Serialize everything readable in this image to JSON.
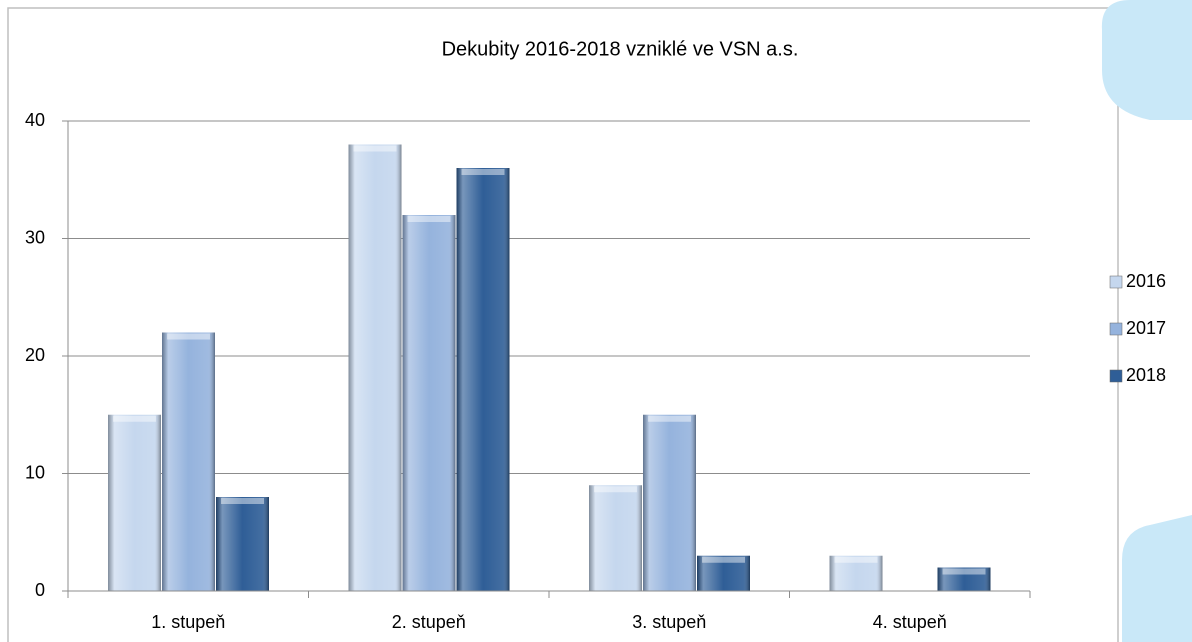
{
  "chart_data": {
    "type": "bar",
    "title": "Dekubity 2016-2018 vzniklé ve VSN a.s.",
    "categories": [
      "1. stupeň",
      "2. stupeň",
      "3. stupeň",
      "4. stupeň"
    ],
    "series": [
      {
        "name": "2016",
        "color": "#c5d7ee",
        "values": [
          15,
          38,
          9,
          3
        ]
      },
      {
        "name": "2017",
        "color": "#95b3dd",
        "values": [
          22,
          32,
          15,
          0
        ]
      },
      {
        "name": "2018",
        "color": "#2f5e97",
        "values": [
          8,
          36,
          3,
          2
        ]
      }
    ],
    "ylim": [
      0,
      40
    ],
    "yticks": [
      0,
      10,
      20,
      30,
      40
    ],
    "grid": true,
    "legend": "right"
  }
}
